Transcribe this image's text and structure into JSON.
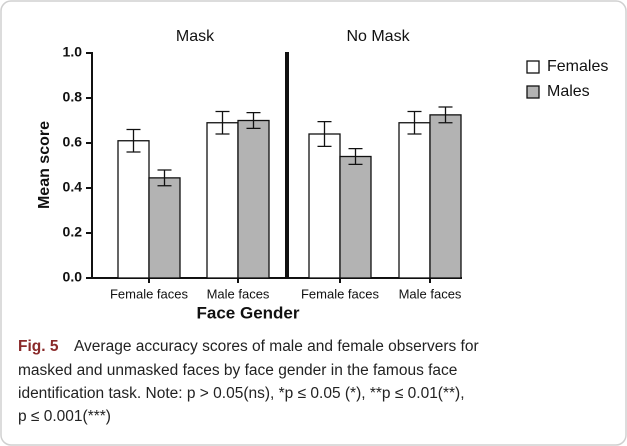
{
  "chart_data": {
    "type": "bar",
    "panels": [
      "Mask",
      "No Mask"
    ],
    "categories": [
      "Female faces",
      "Male faces",
      "Female faces",
      "Male faces"
    ],
    "series": [
      {
        "name": "Females",
        "color": "#ffffff",
        "values": [
          0.61,
          0.69,
          0.64,
          0.69
        ],
        "errors": [
          0.05,
          0.05,
          0.055,
          0.05
        ]
      },
      {
        "name": "Males",
        "color": "#b3b3b3",
        "values": [
          0.445,
          0.7,
          0.54,
          0.725
        ],
        "errors": [
          0.035,
          0.035,
          0.035,
          0.035
        ]
      }
    ],
    "xlabel": "Face Gender",
    "ylabel": "Mean score",
    "ylim": [
      0,
      1
    ],
    "yticks": [
      {
        "value": 0,
        "label": "0.0"
      },
      {
        "value": 0.2,
        "label": "0.2"
      },
      {
        "value": 0.4,
        "label": "0.4"
      },
      {
        "value": 0.6,
        "label": "0.6"
      },
      {
        "value": 0.8,
        "label": "0.8"
      },
      {
        "value": 1,
        "label": "1.0"
      }
    ],
    "legend": "upper right"
  },
  "caption": {
    "label": "Fig. 5",
    "lines": [
      "Average accuracy scores of male and female observers for",
      "masked and unmasked faces by face gender in the famous face",
      "identification task. Note: p > 0.05(ns), *p ≤ 0.05 (*), **p ≤ 0.01(**),",
      "p ≤ 0.001(***)"
    ]
  }
}
